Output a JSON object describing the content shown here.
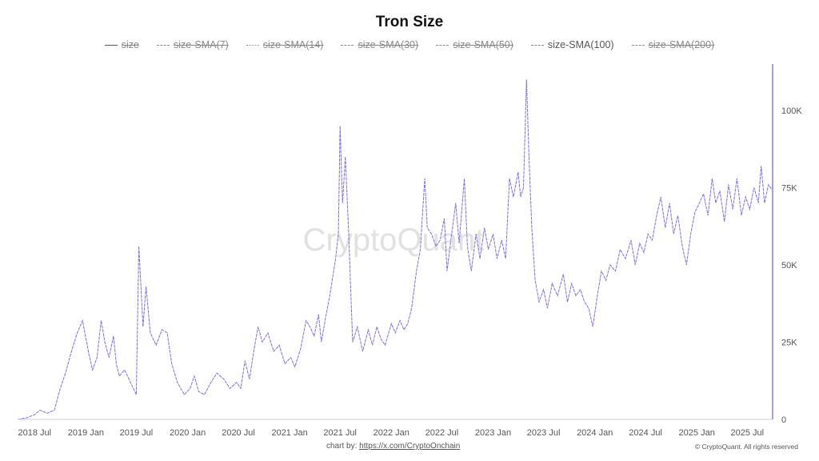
{
  "page": {
    "credit_prefix": "chart by: ",
    "credit_link": "https://x.com/CryptoOnchain",
    "copyright": "© CryptoQuant. All rights reserved",
    "watermark": "CryptoQuant"
  },
  "chart_data": {
    "type": "line",
    "title": "Tron Size",
    "legend_position": "top-center",
    "legend": [
      {
        "label": "size",
        "active": false,
        "style": "solid"
      },
      {
        "label": "size-SMA(7)",
        "active": false,
        "style": "dashed"
      },
      {
        "label": "size-SMA(14)",
        "active": false,
        "style": "dotted"
      },
      {
        "label": "size-SMA(30)",
        "active": false,
        "style": "dashed"
      },
      {
        "label": "size-SMA(50)",
        "active": false,
        "style": "dashed"
      },
      {
        "label": "size-SMA(100)",
        "active": true,
        "style": "dashed"
      },
      {
        "label": "size-SMA(200)",
        "active": false,
        "style": "dashed"
      }
    ],
    "series_color": "#7b6fe0",
    "axis_color": "#a79cf3",
    "grid": false,
    "x_ticks": [
      "2018 Jul",
      "2019 Jan",
      "2019 Jul",
      "2020 Jan",
      "2020 Jul",
      "2021 Jan",
      "2021 Jul",
      "2022 Jan",
      "2022 Jul",
      "2023 Jan",
      "2023 Jul",
      "2024 Jan",
      "2024 Jul",
      "2025 Jan",
      "2025 Jul"
    ],
    "x_range": [
      "2018-05-01",
      "2025-09-30"
    ],
    "y_ticks": [
      0,
      25000,
      50000,
      75000,
      100000
    ],
    "y_tick_labels": [
      "0",
      "25K",
      "50K",
      "75K",
      "100K"
    ],
    "ylim": [
      0,
      115000
    ],
    "points": [
      [
        "2018-05-01",
        0
      ],
      [
        "2018-06-01",
        500
      ],
      [
        "2018-07-01",
        1500
      ],
      [
        "2018-07-20",
        3000
      ],
      [
        "2018-08-15",
        2000
      ],
      [
        "2018-09-10",
        3000
      ],
      [
        "2018-10-01",
        10000
      ],
      [
        "2018-10-20",
        15000
      ],
      [
        "2018-11-10",
        22000
      ],
      [
        "2018-12-01",
        28000
      ],
      [
        "2018-12-20",
        32000
      ],
      [
        "2019-01-10",
        22000
      ],
      [
        "2019-01-25",
        16000
      ],
      [
        "2019-02-10",
        20000
      ],
      [
        "2019-02-25",
        32000
      ],
      [
        "2019-03-10",
        25000
      ],
      [
        "2019-03-25",
        20000
      ],
      [
        "2019-04-10",
        27000
      ],
      [
        "2019-04-20",
        18000
      ],
      [
        "2019-05-01",
        14000
      ],
      [
        "2019-05-20",
        16000
      ],
      [
        "2019-06-10",
        12000
      ],
      [
        "2019-07-01",
        8000
      ],
      [
        "2019-07-10",
        56000
      ],
      [
        "2019-07-25",
        30000
      ],
      [
        "2019-08-05",
        43000
      ],
      [
        "2019-08-20",
        28000
      ],
      [
        "2019-09-10",
        24000
      ],
      [
        "2019-10-01",
        29000
      ],
      [
        "2019-10-20",
        28000
      ],
      [
        "2019-11-05",
        18000
      ],
      [
        "2019-11-25",
        12000
      ],
      [
        "2019-12-20",
        8000
      ],
      [
        "2020-01-10",
        10000
      ],
      [
        "2020-01-25",
        14000
      ],
      [
        "2020-02-10",
        9000
      ],
      [
        "2020-03-01",
        8000
      ],
      [
        "2020-03-25",
        12000
      ],
      [
        "2020-04-15",
        15000
      ],
      [
        "2020-05-10",
        13000
      ],
      [
        "2020-06-01",
        10000
      ],
      [
        "2020-06-25",
        12000
      ],
      [
        "2020-07-10",
        10000
      ],
      [
        "2020-07-25",
        19000
      ],
      [
        "2020-08-10",
        13000
      ],
      [
        "2020-08-25",
        22000
      ],
      [
        "2020-09-10",
        30000
      ],
      [
        "2020-09-25",
        25000
      ],
      [
        "2020-10-15",
        28000
      ],
      [
        "2020-11-05",
        22000
      ],
      [
        "2020-11-25",
        24000
      ],
      [
        "2020-12-15",
        18000
      ],
      [
        "2021-01-05",
        20000
      ],
      [
        "2021-01-20",
        17000
      ],
      [
        "2021-02-10",
        23000
      ],
      [
        "2021-03-01",
        32000
      ],
      [
        "2021-03-15",
        30000
      ],
      [
        "2021-03-30",
        27000
      ],
      [
        "2021-04-15",
        34000
      ],
      [
        "2021-04-25",
        25000
      ],
      [
        "2021-05-10",
        33000
      ],
      [
        "2021-05-25",
        40000
      ],
      [
        "2021-06-15",
        52000
      ],
      [
        "2021-06-25",
        60000
      ],
      [
        "2021-07-01",
        95000
      ],
      [
        "2021-07-10",
        70000
      ],
      [
        "2021-07-20",
        85000
      ],
      [
        "2021-08-01",
        60000
      ],
      [
        "2021-08-15",
        25000
      ],
      [
        "2021-09-01",
        30000
      ],
      [
        "2021-09-20",
        22000
      ],
      [
        "2021-10-10",
        29000
      ],
      [
        "2021-10-25",
        24000
      ],
      [
        "2021-11-10",
        30000
      ],
      [
        "2021-11-25",
        26000
      ],
      [
        "2021-12-10",
        24000
      ],
      [
        "2022-01-01",
        31000
      ],
      [
        "2022-01-15",
        28000
      ],
      [
        "2022-02-01",
        32000
      ],
      [
        "2022-02-15",
        29000
      ],
      [
        "2022-03-01",
        31000
      ],
      [
        "2022-03-15",
        36000
      ],
      [
        "2022-04-01",
        48000
      ],
      [
        "2022-04-15",
        55000
      ],
      [
        "2022-05-01",
        78000
      ],
      [
        "2022-05-10",
        62000
      ],
      [
        "2022-05-25",
        60000
      ],
      [
        "2022-06-10",
        56000
      ],
      [
        "2022-06-25",
        58000
      ],
      [
        "2022-07-10",
        65000
      ],
      [
        "2022-07-20",
        48000
      ],
      [
        "2022-08-01",
        57000
      ],
      [
        "2022-08-20",
        70000
      ],
      [
        "2022-09-01",
        57000
      ],
      [
        "2022-09-20",
        78000
      ],
      [
        "2022-10-01",
        56000
      ],
      [
        "2022-10-15",
        48000
      ],
      [
        "2022-11-01",
        60000
      ],
      [
        "2022-11-15",
        52000
      ],
      [
        "2022-12-01",
        62000
      ],
      [
        "2022-12-15",
        55000
      ],
      [
        "2023-01-01",
        60000
      ],
      [
        "2023-01-15",
        52000
      ],
      [
        "2023-02-01",
        58000
      ],
      [
        "2023-02-15",
        52000
      ],
      [
        "2023-03-01",
        78000
      ],
      [
        "2023-03-15",
        72000
      ],
      [
        "2023-04-01",
        80000
      ],
      [
        "2023-04-10",
        72000
      ],
      [
        "2023-04-20",
        75000
      ],
      [
        "2023-05-01",
        110000
      ],
      [
        "2023-05-10",
        85000
      ],
      [
        "2023-05-20",
        62000
      ],
      [
        "2023-06-01",
        45000
      ],
      [
        "2023-06-15",
        38000
      ],
      [
        "2023-07-01",
        42000
      ],
      [
        "2023-07-15",
        36000
      ],
      [
        "2023-08-01",
        44000
      ],
      [
        "2023-08-20",
        40000
      ],
      [
        "2023-09-10",
        47000
      ],
      [
        "2023-09-25",
        38000
      ],
      [
        "2023-10-10",
        44000
      ],
      [
        "2023-10-25",
        40000
      ],
      [
        "2023-11-10",
        42000
      ],
      [
        "2023-11-25",
        38000
      ],
      [
        "2023-12-10",
        36000
      ],
      [
        "2023-12-25",
        30000
      ],
      [
        "2024-01-10",
        40000
      ],
      [
        "2024-01-25",
        48000
      ],
      [
        "2024-02-10",
        45000
      ],
      [
        "2024-02-25",
        50000
      ],
      [
        "2024-03-15",
        48000
      ],
      [
        "2024-04-01",
        55000
      ],
      [
        "2024-04-20",
        52000
      ],
      [
        "2024-05-10",
        58000
      ],
      [
        "2024-05-25",
        50000
      ],
      [
        "2024-06-10",
        57000
      ],
      [
        "2024-06-25",
        54000
      ],
      [
        "2024-07-10",
        60000
      ],
      [
        "2024-07-25",
        58000
      ],
      [
        "2024-08-10",
        66000
      ],
      [
        "2024-08-25",
        72000
      ],
      [
        "2024-09-10",
        62000
      ],
      [
        "2024-09-25",
        70000
      ],
      [
        "2024-10-10",
        60000
      ],
      [
        "2024-10-25",
        66000
      ],
      [
        "2024-11-10",
        56000
      ],
      [
        "2024-11-25",
        50000
      ],
      [
        "2024-12-10",
        60000
      ],
      [
        "2024-12-25",
        67000
      ],
      [
        "2025-01-10",
        70000
      ],
      [
        "2025-01-25",
        73000
      ],
      [
        "2025-02-10",
        66000
      ],
      [
        "2025-02-25",
        78000
      ],
      [
        "2025-03-10",
        70000
      ],
      [
        "2025-03-25",
        74000
      ],
      [
        "2025-04-10",
        64000
      ],
      [
        "2025-04-25",
        76000
      ],
      [
        "2025-05-10",
        68000
      ],
      [
        "2025-05-25",
        78000
      ],
      [
        "2025-06-10",
        66000
      ],
      [
        "2025-06-25",
        72000
      ],
      [
        "2025-07-10",
        68000
      ],
      [
        "2025-07-25",
        75000
      ],
      [
        "2025-08-10",
        70000
      ],
      [
        "2025-08-20",
        82000
      ],
      [
        "2025-09-01",
        70000
      ],
      [
        "2025-09-15",
        76000
      ],
      [
        "2025-09-30",
        74000
      ]
    ]
  }
}
